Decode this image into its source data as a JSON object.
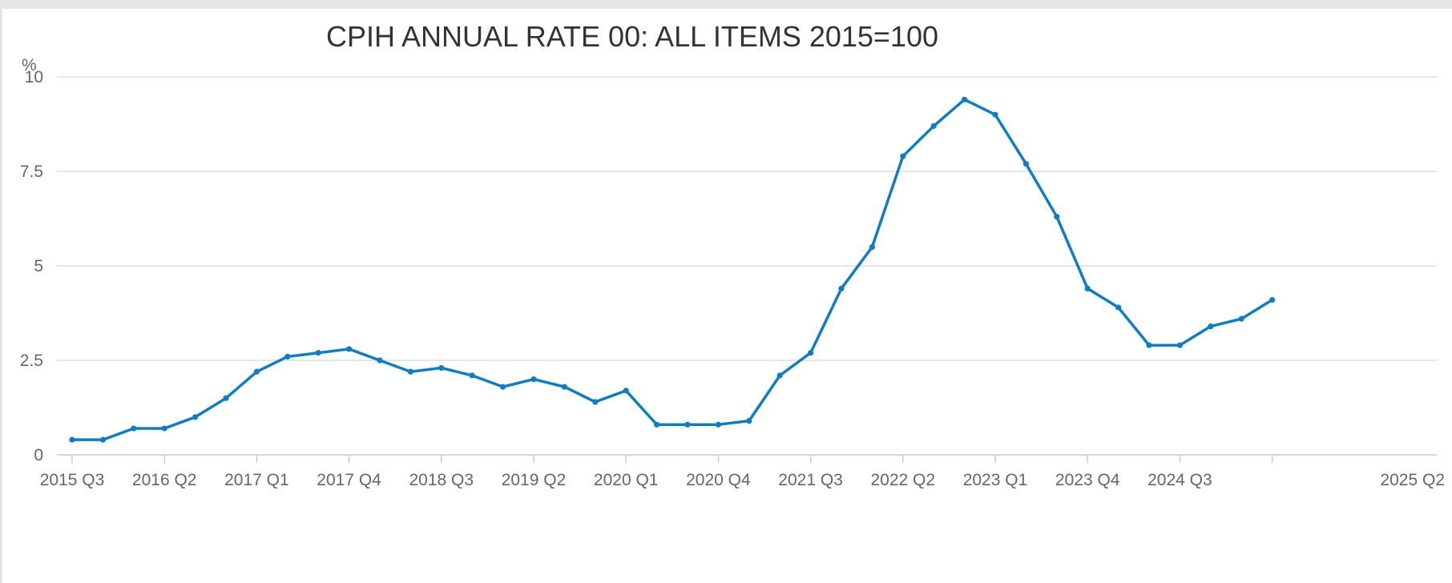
{
  "chart_data": {
    "type": "line",
    "title": "CPIH ANNUAL RATE 00: ALL ITEMS 2015=100",
    "ylabel": "%",
    "ylim": [
      0,
      10
    ],
    "yticks": [
      "0",
      "2.5",
      "5",
      "7.5",
      "10"
    ],
    "ytick_values": [
      0,
      2.5,
      5,
      7.5,
      10
    ],
    "grid": true,
    "x": [
      "2015 Q3",
      "2015 Q4",
      "2016 Q1",
      "2016 Q2",
      "2016 Q3",
      "2016 Q4",
      "2017 Q1",
      "2017 Q2",
      "2017 Q3",
      "2017 Q4",
      "2018 Q1",
      "2018 Q2",
      "2018 Q3",
      "2018 Q4",
      "2019 Q1",
      "2019 Q2",
      "2019 Q3",
      "2019 Q4",
      "2020 Q1",
      "2020 Q2",
      "2020 Q3",
      "2020 Q4",
      "2021 Q1",
      "2021 Q2",
      "2021 Q3",
      "2021 Q4",
      "2022 Q1",
      "2022 Q2",
      "2022 Q3",
      "2022 Q4",
      "2023 Q1",
      "2023 Q2",
      "2023 Q3",
      "2023 Q4",
      "2024 Q1",
      "2024 Q2",
      "2024 Q3",
      "2024 Q4",
      "2025 Q1",
      "2025 Q2"
    ],
    "xtick_labels": [
      "2015 Q3",
      "2016 Q2",
      "2017 Q1",
      "2017 Q4",
      "2018 Q3",
      "2019 Q2",
      "2020 Q1",
      "2020 Q4",
      "2021 Q3",
      "2022 Q2",
      "2023 Q1",
      "2023 Q4",
      "2024 Q3",
      "2025 Q2"
    ],
    "series": [
      {
        "color": "#0f7cc4",
        "values": [
          0.4,
          0.4,
          0.7,
          0.7,
          1.0,
          1.5,
          2.2,
          2.6,
          2.7,
          2.8,
          2.5,
          2.2,
          2.3,
          2.1,
          1.8,
          2.0,
          1.8,
          1.4,
          1.7,
          0.8,
          0.8,
          0.8,
          0.9,
          2.1,
          2.7,
          4.4,
          5.5,
          7.9,
          8.7,
          9.4,
          9.0,
          7.7,
          6.3,
          4.4,
          3.9,
          2.9,
          2.9,
          3.4,
          3.6,
          4.1
        ]
      }
    ]
  }
}
